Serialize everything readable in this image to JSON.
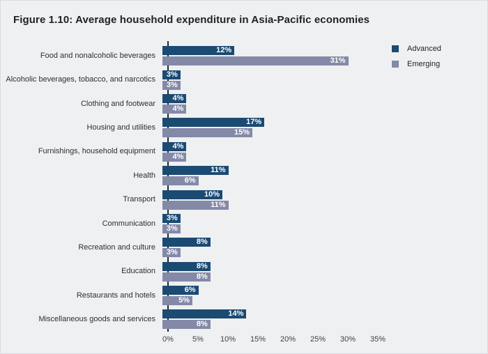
{
  "title": "Figure 1.10: Average household expenditure in Asia-Pacific economies",
  "legend": [
    {
      "label": "Advanced",
      "color": "#1b4a72"
    },
    {
      "label": "Emerging",
      "color": "#8389a7"
    }
  ],
  "chart_data": {
    "type": "bar",
    "orientation": "horizontal",
    "title": "Figure 1.10: Average household expenditure in Asia-Pacific economies",
    "categories": [
      "Food and nonalcoholic beverages",
      "Alcoholic beverages, tobacco, and narcotics",
      "Clothing and footwear",
      "Housing and utilities",
      "Furnishings, household equipment",
      "Health",
      "Transport",
      "Communication",
      "Recreation and culture",
      "Education",
      "Restaurants and hotels",
      "Miscellaneous goods and services"
    ],
    "series": [
      {
        "name": "Advanced",
        "color": "#1b4a72",
        "values": [
          12,
          3,
          4,
          17,
          4,
          11,
          10,
          3,
          8,
          8,
          6,
          14
        ]
      },
      {
        "name": "Emerging",
        "color": "#8389a7",
        "values": [
          31,
          3,
          4,
          15,
          4,
          6,
          11,
          3,
          3,
          8,
          5,
          8
        ]
      }
    ],
    "value_suffix": "%",
    "data_labels": "inside-end-white-bold",
    "x_ticks": [
      "0%",
      "5%",
      "10%",
      "15%",
      "20%",
      "25%",
      "30%",
      "35%"
    ],
    "xlim": [
      0,
      35
    ],
    "grid": false,
    "legend_position": "top-right",
    "background": "#eff0f2"
  }
}
